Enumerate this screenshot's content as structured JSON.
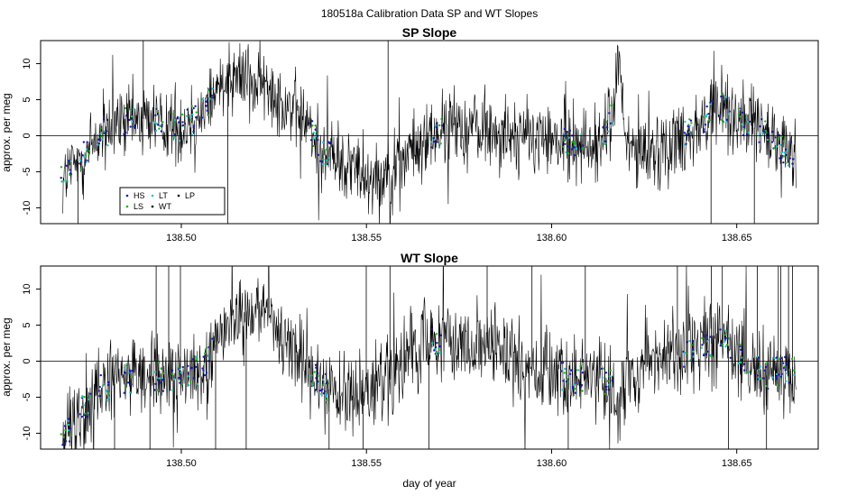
{
  "figure": {
    "title": "180518a   Calibration Data SP and WT Slopes"
  },
  "series_colors": {
    "HS": "#1a1aa6",
    "LS": "#22b022",
    "LT": "#22c4c4",
    "WT": "#000000",
    "LP": "#000000"
  },
  "chart_data": [
    {
      "type": "line",
      "title": "SP Slope",
      "xlabel": "",
      "ylabel": "approx. per meg",
      "xlim": [
        138.462,
        138.672
      ],
      "ylim": [
        -12.2,
        13.2
      ],
      "x_ticks": [
        138.5,
        138.55,
        138.6,
        138.65
      ],
      "x_tick_labels": [
        "138.50",
        "138.55",
        "138.60",
        "138.65"
      ],
      "y_ticks": [
        -10,
        -5,
        0,
        5,
        10
      ],
      "y_tick_labels": [
        "-10",
        "-5",
        "0",
        "5",
        "10"
      ],
      "reference_line_y": 0,
      "grid": false,
      "legend": {
        "position": "bottom-left",
        "entries": [
          {
            "label": "HS",
            "color": "#1a1aa6"
          },
          {
            "label": "LT",
            "color": "#22c4c4"
          },
          {
            "label": "LP",
            "color": "#000000"
          },
          {
            "label": "LS",
            "color": "#22b022"
          },
          {
            "label": "WT",
            "color": "#000000"
          }
        ]
      },
      "trend": {
        "x": [
          138.468,
          138.473,
          138.478,
          138.485,
          138.492,
          138.5,
          138.505,
          138.509,
          138.513,
          138.518,
          138.523,
          138.528,
          138.533,
          138.538,
          138.545,
          138.552,
          138.558,
          138.563,
          138.568,
          138.575,
          138.582,
          138.59,
          138.598,
          138.606,
          138.612,
          138.616,
          138.618,
          138.62,
          138.624,
          138.63,
          138.636,
          138.641,
          138.646,
          138.652,
          138.658,
          138.663,
          138.666
        ],
        "y": [
          -6,
          -3,
          0,
          2,
          2.5,
          1,
          3,
          6,
          9,
          8,
          6.5,
          5,
          2,
          -2,
          -4,
          -5.5,
          -4.5,
          -2,
          0,
          1.5,
          1,
          0,
          -0.5,
          -1,
          -1.5,
          2,
          10,
          -1,
          -2.5,
          -1.5,
          0,
          2,
          4,
          2,
          0,
          -2,
          -3
        ]
      },
      "noise_amplitude": 2.6
    },
    {
      "type": "line",
      "title": "WT Slope",
      "xlabel": "day of year",
      "ylabel": "approx. per meg",
      "xlim": [
        138.462,
        138.672
      ],
      "ylim": [
        -12.2,
        13.2
      ],
      "x_ticks": [
        138.5,
        138.55,
        138.6,
        138.65
      ],
      "x_tick_labels": [
        "138.50",
        "138.55",
        "138.60",
        "138.65"
      ],
      "y_ticks": [
        -10,
        -5,
        0,
        5,
        10
      ],
      "y_tick_labels": [
        "-10",
        "-5",
        "0",
        "5",
        "10"
      ],
      "reference_line_y": 0,
      "grid": false,
      "trend": {
        "x": [
          138.468,
          138.473,
          138.478,
          138.485,
          138.492,
          138.5,
          138.505,
          138.509,
          138.513,
          138.518,
          138.523,
          138.528,
          138.533,
          138.538,
          138.545,
          138.552,
          138.558,
          138.563,
          138.568,
          138.575,
          138.582,
          138.59,
          138.598,
          138.606,
          138.612,
          138.616,
          138.618,
          138.62,
          138.624,
          138.63,
          138.636,
          138.641,
          138.646,
          138.652,
          138.658,
          138.663,
          138.666
        ],
        "y": [
          -11,
          -7,
          -4,
          -2.5,
          -2,
          -2.5,
          -1,
          2,
          6,
          7,
          5.5,
          3,
          0,
          -3.5,
          -5,
          -4,
          -2,
          1,
          3,
          3,
          2,
          0,
          -1.5,
          -2.5,
          -2.5,
          -3,
          -8,
          -2,
          0,
          0.5,
          1,
          2,
          3,
          0,
          -2,
          -1,
          -2
        ]
      },
      "noise_amplitude": 2.8
    }
  ]
}
